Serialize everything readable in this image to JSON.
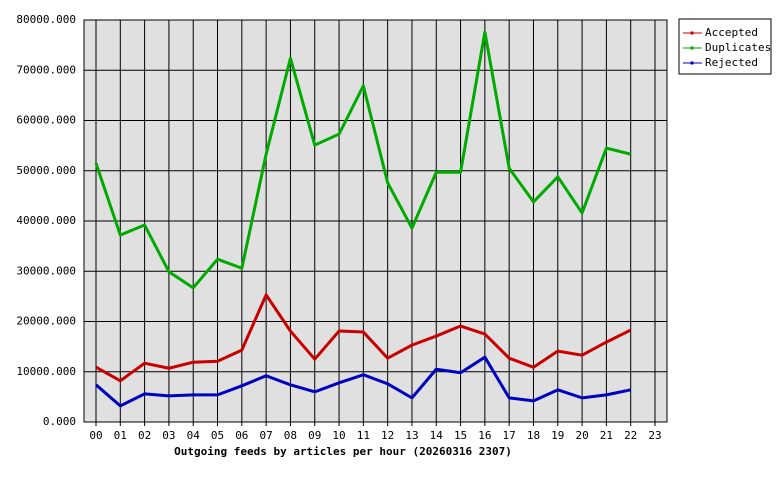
{
  "chart_data": {
    "type": "line",
    "xlabel": "Outgoing feeds by articles per hour (20260316 2307)",
    "categories": [
      "00",
      "01",
      "02",
      "03",
      "04",
      "05",
      "06",
      "07",
      "08",
      "09",
      "10",
      "11",
      "12",
      "13",
      "14",
      "15",
      "16",
      "17",
      "18",
      "19",
      "20",
      "21",
      "22",
      "23"
    ],
    "series": [
      {
        "name": "Accepted",
        "color": "#c80000",
        "values": [
          10900,
          8200,
          11700,
          10700,
          11900,
          12100,
          14300,
          25300,
          18100,
          12500,
          18100,
          17900,
          12700,
          15300,
          17100,
          19100,
          17500,
          12700,
          10900,
          14100,
          13300,
          15900,
          18300,
          null
        ]
      },
      {
        "name": "Duplicates",
        "color": "#00aa00",
        "values": [
          51500,
          37200,
          39200,
          29900,
          26700,
          32400,
          30600,
          53300,
          72400,
          55100,
          57300,
          66900,
          47600,
          38600,
          49700,
          49700,
          77600,
          50500,
          43800,
          48800,
          41600,
          54500,
          53300,
          null
        ]
      },
      {
        "name": "Rejected",
        "color": "#0000c0",
        "values": [
          7400,
          3200,
          5600,
          5200,
          5400,
          5400,
          7200,
          9200,
          7400,
          6000,
          7800,
          9400,
          7600,
          4800,
          10500,
          9800,
          12900,
          4800,
          4200,
          6400,
          4800,
          5400,
          6400,
          null
        ]
      }
    ],
    "ylim": [
      0,
      80000
    ],
    "yticks": [
      {
        "value": 0,
        "label": "0.000"
      },
      {
        "value": 10000,
        "label": "10000.000"
      },
      {
        "value": 20000,
        "label": "20000.000"
      },
      {
        "value": 30000,
        "label": "30000.000"
      },
      {
        "value": 40000,
        "label": "40000.000"
      },
      {
        "value": 50000,
        "label": "50000.000"
      },
      {
        "value": 60000,
        "label": "60000.000"
      },
      {
        "value": 70000,
        "label": "70000.000"
      },
      {
        "value": 80000,
        "label": "80000.000"
      }
    ],
    "grid": true,
    "legend": "top-right"
  }
}
